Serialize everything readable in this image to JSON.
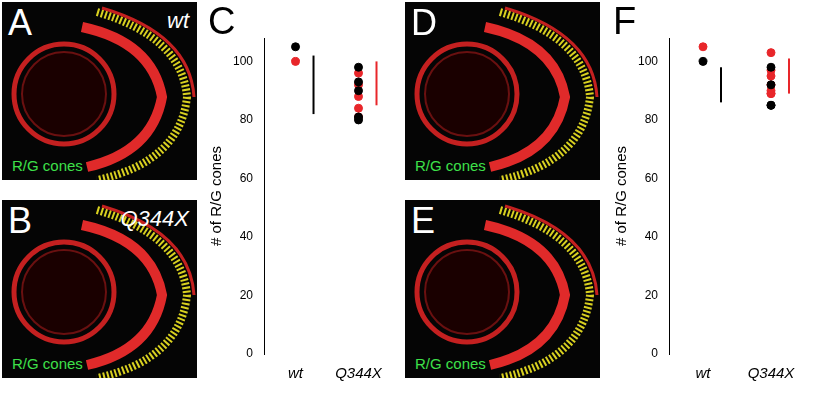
{
  "panels": [
    {
      "letter": "A",
      "genotype": "wt",
      "label": "R/G cones"
    },
    {
      "letter": "B",
      "genotype": "Q344X",
      "label": "R/G cones"
    },
    {
      "letter": "D",
      "label": "R/G cones"
    },
    {
      "letter": "E",
      "label": "R/G cones"
    }
  ],
  "chart_data": [
    {
      "panel": "C",
      "type": "scatter",
      "y_label": "# of R/G cones",
      "categories": [
        "wt",
        "Q344X"
      ],
      "values": [
        [
          105,
          98,
          93,
          90,
          81,
          80
        ],
        [
          100,
          96,
          92,
          88,
          84,
          81
        ]
      ],
      "colors": [
        "#000000",
        "#e8262a"
      ],
      "error_bars": [
        [
          82,
          102
        ],
        [
          85,
          100
        ]
      ],
      "ylim": [
        0,
        108
      ],
      "yticks": [
        0,
        20,
        40,
        60,
        80,
        100
      ],
      "grid": false
    },
    {
      "panel": "F",
      "type": "scatter",
      "y_label": "# of R/G cones",
      "categories": [
        "wt",
        "Q344X"
      ],
      "values": [
        [
          100,
          98,
          92,
          85,
          85
        ],
        [
          105,
          103,
          97,
          95,
          92,
          90,
          89,
          89
        ]
      ],
      "colors": [
        "#000000",
        "#e8262a"
      ],
      "error_bars": [
        [
          86,
          98
        ],
        [
          89,
          101
        ]
      ],
      "ylim": [
        0,
        108
      ],
      "yticks": [
        0,
        20,
        40,
        60,
        80,
        100
      ],
      "grid": false
    }
  ]
}
